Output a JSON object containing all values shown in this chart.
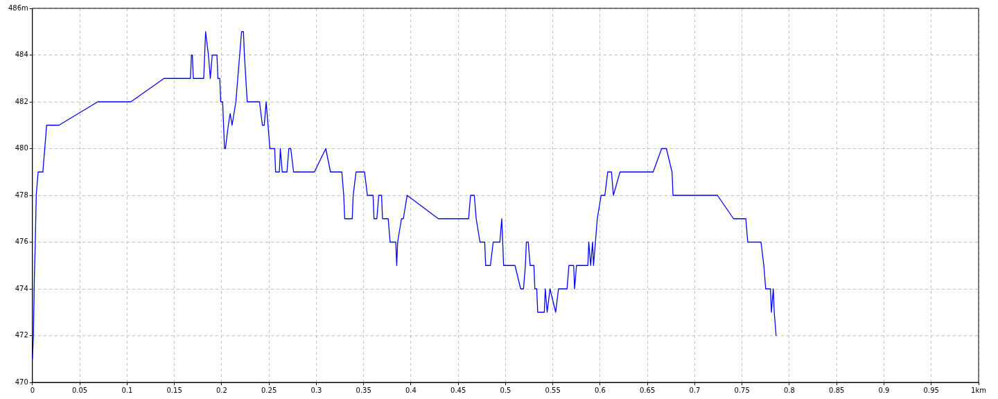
{
  "chart_data": {
    "type": "line",
    "marker": "none",
    "line_style": "solid",
    "grid": true,
    "legend": false,
    "xlim": [
      0,
      1
    ],
    "ylim": [
      470,
      486
    ],
    "xticks": [
      0,
      0.05,
      0.1,
      0.15,
      0.2,
      0.25,
      0.3,
      0.35,
      0.4,
      0.45,
      0.5,
      0.55,
      0.6,
      0.65,
      0.7,
      0.75,
      0.8,
      0.85,
      0.9,
      0.95,
      {
        "value": 1,
        "label": "1km"
      }
    ],
    "yticks": [
      470,
      472,
      474,
      476,
      478,
      480,
      482,
      484,
      {
        "value": 486,
        "label": "486m"
      }
    ],
    "series": [
      {
        "color": "#0000ff",
        "x": [
          0,
          0.001,
          0.002,
          0.003,
          0.004,
          0.006,
          0.011,
          0.013,
          0.015,
          0.028,
          0.069,
          0.104,
          0.139,
          0.167,
          0.168,
          0.169,
          0.17,
          0.181,
          0.183,
          0.186,
          0.188,
          0.19,
          0.195,
          0.196,
          0.198,
          0.199,
          0.201,
          0.203,
          0.204,
          0.207,
          0.209,
          0.211,
          0.215,
          0.217,
          0.219,
          0.221,
          0.223,
          0.224,
          0.227,
          0.24,
          0.243,
          0.245,
          0.247,
          0.249,
          0.251,
          0.256,
          0.257,
          0.261,
          0.262,
          0.264,
          0.269,
          0.271,
          0.273,
          0.276,
          0.298,
          0.31,
          0.315,
          0.327,
          0.329,
          0.33,
          0.338,
          0.339,
          0.342,
          0.351,
          0.354,
          0.36,
          0.361,
          0.364,
          0.366,
          0.369,
          0.37,
          0.376,
          0.378,
          0.384,
          0.385,
          0.386,
          0.39,
          0.392,
          0.396,
          0.429,
          0.461,
          0.463,
          0.467,
          0.469,
          0.473,
          0.478,
          0.479,
          0.484,
          0.487,
          0.494,
          0.496,
          0.498,
          0.51,
          0.516,
          0.519,
          0.521,
          0.522,
          0.524,
          0.526,
          0.53,
          0.531,
          0.533,
          0.534,
          0.541,
          0.542,
          0.544,
          0.547,
          0.553,
          0.556,
          0.565,
          0.567,
          0.572,
          0.573,
          0.575,
          0.587,
          0.588,
          0.59,
          0.592,
          0.593,
          0.597,
          0.601,
          0.605,
          0.608,
          0.612,
          0.614,
          0.621,
          0.656,
          0.665,
          0.67,
          0.676,
          0.677,
          0.724,
          0.741,
          0.754,
          0.756,
          0.77,
          0.773,
          0.775,
          0.78,
          0.781,
          0.783,
          0.784,
          0.786
        ],
        "values": [
          471,
          472,
          474.5,
          476,
          478,
          479,
          479,
          480,
          481,
          481,
          482,
          482,
          483,
          483,
          484,
          484,
          483,
          483,
          485,
          484,
          483,
          484,
          484,
          483,
          483,
          482,
          482,
          480,
          480,
          481,
          481.5,
          481,
          482,
          483,
          484,
          485,
          485,
          484,
          482,
          482,
          481,
          481,
          482,
          481,
          480,
          480,
          479,
          479,
          480,
          479,
          479,
          480,
          480,
          479,
          479,
          480,
          479,
          479,
          478,
          477,
          477,
          478,
          479,
          479,
          478,
          478,
          477,
          477,
          478,
          478,
          477,
          477,
          476,
          476,
          475,
          476,
          477,
          477,
          478,
          477,
          477,
          478,
          478,
          477,
          476,
          476,
          475,
          475,
          476,
          476,
          477,
          475,
          475,
          474,
          474,
          475,
          476,
          476,
          475,
          475,
          474,
          474,
          473,
          473,
          474,
          473,
          474,
          473,
          474,
          474,
          475,
          475,
          474,
          475,
          475,
          476,
          475,
          476,
          475,
          477,
          478,
          478,
          479,
          479,
          478,
          479,
          479,
          480,
          480,
          479,
          478,
          478,
          477,
          477,
          476,
          476,
          475,
          474,
          474,
          473,
          474,
          473,
          472
        ]
      }
    ]
  }
}
